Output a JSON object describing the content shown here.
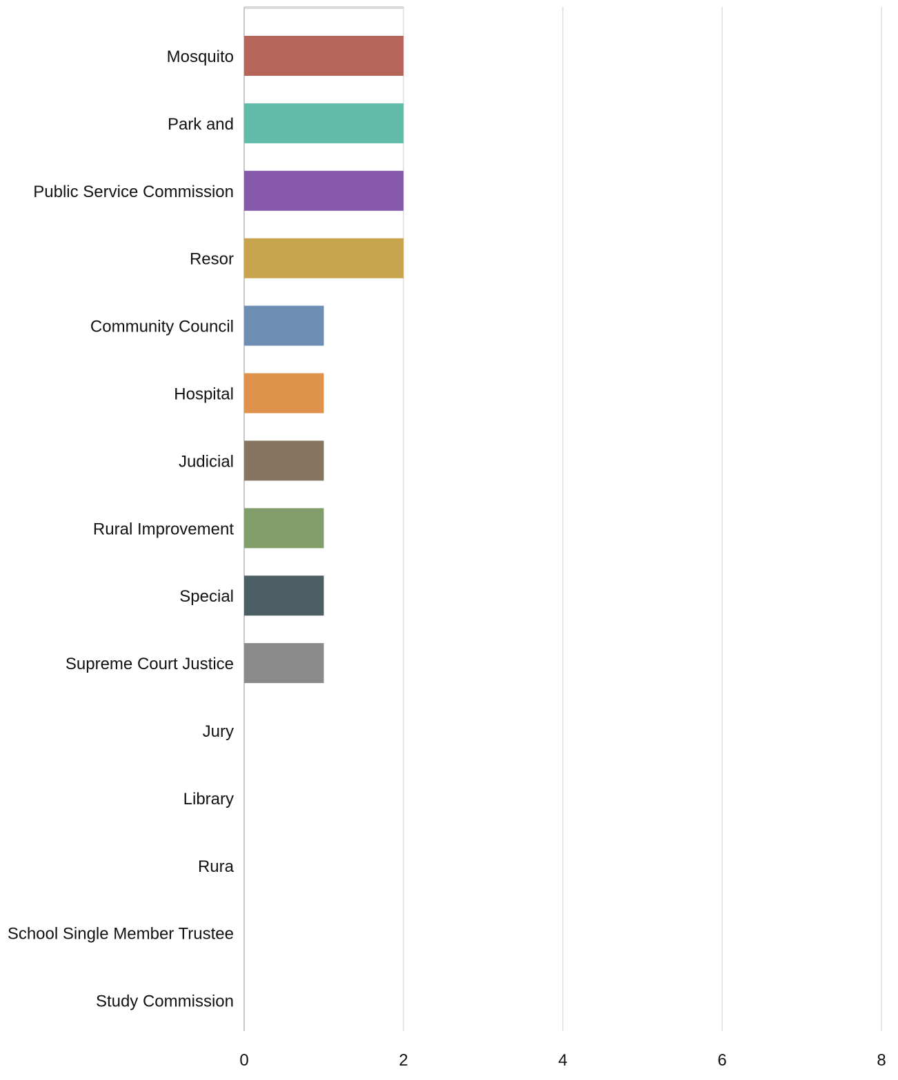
{
  "chart_data": {
    "type": "bar",
    "orientation": "horizontal",
    "title": "",
    "xlabel": "",
    "ylabel": "",
    "categories": [
      "Mosquito",
      "Park and",
      "Public Service Commission",
      "Resor",
      "Community Council",
      "Hospital",
      "Judicial",
      "Rural Improvement",
      "Special",
      "Supreme Court Justice",
      "Jury",
      "Library",
      "Rura",
      "School Single Member Trustee",
      "Study Commission"
    ],
    "values": [
      2,
      2,
      2,
      2,
      1,
      1,
      1,
      1,
      1,
      1,
      0,
      0,
      0,
      0,
      0
    ],
    "colors": [
      "#b5655a",
      "#62bba9",
      "#8659ab",
      "#c8a44e",
      "#6d8db3",
      "#de924b",
      "#877561",
      "#809d6a",
      "#4c5f65",
      "#8a8a8a",
      "#cccccc",
      "#cccccc",
      "#cccccc",
      "#cccccc",
      "#cccccc"
    ],
    "xlim": [
      0,
      8
    ],
    "xticks": [
      "0",
      "2",
      "4",
      "6",
      "8"
    ],
    "grid": true,
    "gridline_color": "#dddddd"
  }
}
